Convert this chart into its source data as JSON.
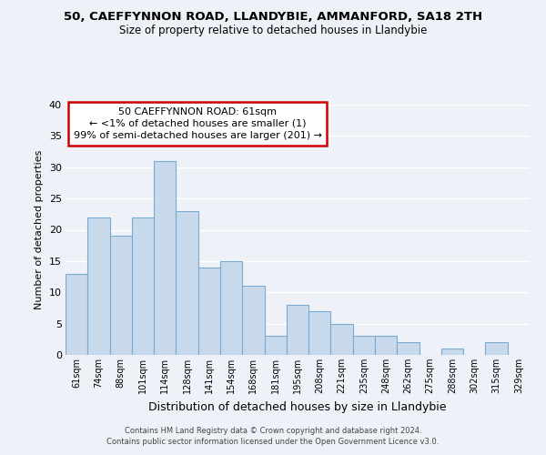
{
  "title1": "50, CAEFFYNNON ROAD, LLANDYBIE, AMMANFORD, SA18 2TH",
  "title2": "Size of property relative to detached houses in Llandybie",
  "xlabel": "Distribution of detached houses by size in Llandybie",
  "ylabel": "Number of detached properties",
  "bin_labels": [
    "61sqm",
    "74sqm",
    "88sqm",
    "101sqm",
    "114sqm",
    "128sqm",
    "141sqm",
    "154sqm",
    "168sqm",
    "181sqm",
    "195sqm",
    "208sqm",
    "221sqm",
    "235sqm",
    "248sqm",
    "262sqm",
    "275sqm",
    "288sqm",
    "302sqm",
    "315sqm",
    "329sqm"
  ],
  "bar_values": [
    13,
    22,
    19,
    22,
    31,
    23,
    14,
    15,
    11,
    3,
    8,
    7,
    5,
    3,
    3,
    2,
    0,
    1,
    0,
    2,
    0
  ],
  "bar_color": "#c8d9ec",
  "bar_edge_color": "#7aaad0",
  "annotation_title": "50 CAEFFYNNON ROAD: 61sqm",
  "annotation_line1": "← <1% of detached houses are smaller (1)",
  "annotation_line2": "99% of semi-detached houses are larger (201) →",
  "annotation_box_facecolor": "#ffffff",
  "annotation_box_edgecolor": "#cc0000",
  "ylim": [
    0,
    40
  ],
  "yticks": [
    0,
    5,
    10,
    15,
    20,
    25,
    30,
    35,
    40
  ],
  "footer1": "Contains HM Land Registry data © Crown copyright and database right 2024.",
  "footer2": "Contains public sector information licensed under the Open Government Licence v3.0.",
  "bg_color": "#eef2f8",
  "grid_color": "#ffffff"
}
